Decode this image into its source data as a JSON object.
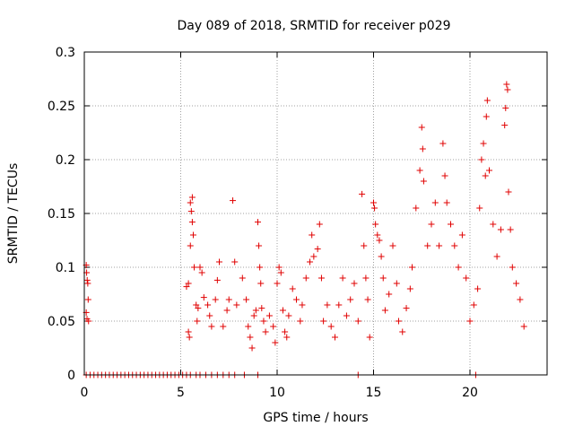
{
  "chart_data": {
    "type": "scatter",
    "title": "Day 089 of 2018, SRMTID for receiver p029",
    "xlabel": "GPS time / hours",
    "ylabel": "SRMTID / TECUs",
    "xlim": [
      0,
      24
    ],
    "ylim": [
      0,
      0.3
    ],
    "xticks": [
      0,
      5,
      10,
      15,
      20
    ],
    "xtick_labels": [
      "0",
      "5",
      "10",
      "15",
      "20"
    ],
    "yticks": [
      0,
      0.05,
      0.1,
      0.15,
      0.2,
      0.25,
      0.3
    ],
    "ytick_labels": [
      "0",
      "0.05",
      "0.1",
      "0.15",
      "0.2",
      "0.25",
      "0.3"
    ],
    "grid": true,
    "legend": "none",
    "marker": "plus",
    "series": [
      {
        "name": "SRMTID",
        "color": "#e00000",
        "points": [
          [
            0.1,
            0.102
          ],
          [
            0.12,
            0.095
          ],
          [
            0.15,
            0.088
          ],
          [
            0.18,
            0.085
          ],
          [
            0.2,
            0.07
          ],
          [
            0.1,
            0.058
          ],
          [
            0.14,
            0.052
          ],
          [
            0.22,
            0.05
          ],
          [
            5.3,
            0.082
          ],
          [
            5.4,
            0.085
          ],
          [
            5.5,
            0.16
          ],
          [
            5.6,
            0.165
          ],
          [
            5.55,
            0.152
          ],
          [
            5.6,
            0.142
          ],
          [
            5.65,
            0.13
          ],
          [
            5.5,
            0.12
          ],
          [
            5.7,
            0.1
          ],
          [
            5.4,
            0.04
          ],
          [
            5.45,
            0.035
          ],
          [
            5.8,
            0.065
          ],
          [
            5.85,
            0.05
          ],
          [
            5.9,
            0.062
          ],
          [
            6.0,
            0.1
          ],
          [
            6.1,
            0.095
          ],
          [
            6.2,
            0.072
          ],
          [
            6.4,
            0.065
          ],
          [
            6.5,
            0.055
          ],
          [
            6.6,
            0.045
          ],
          [
            6.8,
            0.07
          ],
          [
            6.9,
            0.088
          ],
          [
            7.0,
            0.105
          ],
          [
            7.2,
            0.045
          ],
          [
            7.4,
            0.06
          ],
          [
            7.5,
            0.07
          ],
          [
            7.7,
            0.162
          ],
          [
            7.8,
            0.105
          ],
          [
            7.9,
            0.065
          ],
          [
            8.2,
            0.09
          ],
          [
            8.4,
            0.07
          ],
          [
            8.5,
            0.045
          ],
          [
            8.6,
            0.035
          ],
          [
            8.7,
            0.025
          ],
          [
            8.8,
            0.055
          ],
          [
            8.9,
            0.06
          ],
          [
            9.0,
            0.142
          ],
          [
            9.05,
            0.12
          ],
          [
            9.1,
            0.1
          ],
          [
            9.15,
            0.085
          ],
          [
            9.2,
            0.062
          ],
          [
            9.3,
            0.05
          ],
          [
            9.4,
            0.04
          ],
          [
            9.6,
            0.055
          ],
          [
            9.8,
            0.045
          ],
          [
            9.9,
            0.03
          ],
          [
            10.0,
            0.085
          ],
          [
            10.1,
            0.1
          ],
          [
            10.2,
            0.095
          ],
          [
            10.3,
            0.06
          ],
          [
            10.4,
            0.04
          ],
          [
            10.5,
            0.035
          ],
          [
            10.6,
            0.055
          ],
          [
            10.8,
            0.08
          ],
          [
            11.0,
            0.07
          ],
          [
            11.2,
            0.05
          ],
          [
            11.3,
            0.065
          ],
          [
            11.5,
            0.09
          ],
          [
            11.7,
            0.105
          ],
          [
            11.8,
            0.13
          ],
          [
            11.9,
            0.11
          ],
          [
            12.1,
            0.117
          ],
          [
            12.2,
            0.14
          ],
          [
            12.3,
            0.09
          ],
          [
            12.4,
            0.05
          ],
          [
            12.6,
            0.065
          ],
          [
            12.8,
            0.045
          ],
          [
            13.0,
            0.035
          ],
          [
            13.2,
            0.065
          ],
          [
            13.4,
            0.09
          ],
          [
            13.6,
            0.055
          ],
          [
            13.8,
            0.07
          ],
          [
            14.0,
            0.085
          ],
          [
            14.2,
            0.05
          ],
          [
            14.4,
            0.168
          ],
          [
            14.5,
            0.12
          ],
          [
            14.6,
            0.09
          ],
          [
            14.7,
            0.07
          ],
          [
            14.8,
            0.035
          ],
          [
            15.0,
            0.16
          ],
          [
            15.05,
            0.155
          ],
          [
            15.1,
            0.14
          ],
          [
            15.2,
            0.13
          ],
          [
            15.3,
            0.125
          ],
          [
            15.4,
            0.11
          ],
          [
            15.5,
            0.09
          ],
          [
            15.6,
            0.06
          ],
          [
            15.8,
            0.075
          ],
          [
            16.0,
            0.12
          ],
          [
            16.2,
            0.085
          ],
          [
            16.3,
            0.05
          ],
          [
            16.5,
            0.04
          ],
          [
            16.7,
            0.062
          ],
          [
            16.9,
            0.08
          ],
          [
            17.0,
            0.1
          ],
          [
            17.2,
            0.155
          ],
          [
            17.4,
            0.19
          ],
          [
            17.5,
            0.23
          ],
          [
            17.55,
            0.21
          ],
          [
            17.6,
            0.18
          ],
          [
            17.8,
            0.12
          ],
          [
            18.0,
            0.14
          ],
          [
            18.2,
            0.16
          ],
          [
            18.4,
            0.12
          ],
          [
            18.6,
            0.215
          ],
          [
            18.7,
            0.185
          ],
          [
            18.8,
            0.16
          ],
          [
            19.0,
            0.14
          ],
          [
            19.2,
            0.12
          ],
          [
            19.4,
            0.1
          ],
          [
            19.6,
            0.13
          ],
          [
            19.8,
            0.09
          ],
          [
            20.0,
            0.05
          ],
          [
            20.2,
            0.065
          ],
          [
            20.4,
            0.08
          ],
          [
            20.5,
            0.155
          ],
          [
            20.6,
            0.2
          ],
          [
            20.7,
            0.215
          ],
          [
            20.8,
            0.185
          ],
          [
            20.85,
            0.24
          ],
          [
            20.9,
            0.255
          ],
          [
            21.0,
            0.19
          ],
          [
            21.2,
            0.14
          ],
          [
            21.4,
            0.11
          ],
          [
            21.6,
            0.135
          ],
          [
            21.8,
            0.232
          ],
          [
            21.85,
            0.248
          ],
          [
            21.9,
            0.27
          ],
          [
            21.95,
            0.265
          ],
          [
            22.0,
            0.17
          ],
          [
            22.1,
            0.135
          ],
          [
            22.2,
            0.1
          ],
          [
            22.4,
            0.085
          ],
          [
            22.6,
            0.07
          ],
          [
            22.8,
            0.045
          ]
        ]
      }
    ],
    "zero_points_x": [
      0.1,
      0.3,
      0.5,
      0.7,
      0.9,
      1.1,
      1.3,
      1.5,
      1.7,
      1.9,
      2.1,
      2.3,
      2.5,
      2.7,
      2.9,
      3.1,
      3.3,
      3.5,
      3.7,
      3.9,
      4.1,
      4.3,
      4.5,
      4.7,
      4.9,
      5.1,
      5.3,
      5.5,
      5.8,
      6.0,
      6.3,
      6.6,
      6.9,
      7.2,
      7.5,
      7.8,
      8.3,
      9.0,
      14.2,
      20.3
    ]
  }
}
